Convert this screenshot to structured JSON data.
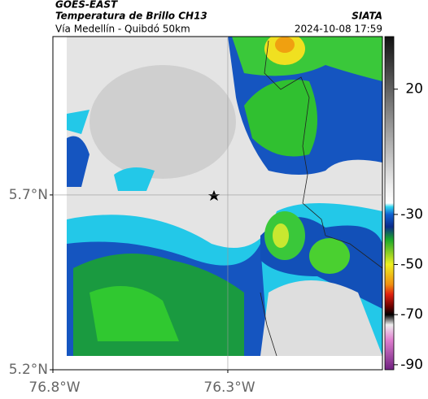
{
  "header": {
    "source": "GOES-EAST",
    "product": "Temperatura de Brillo CH13",
    "region": "Vía Medellín - Quibdó 50km",
    "agency": "SIATA",
    "datetime": "2024-10-08 17:59"
  },
  "map": {
    "xlim": [
      -76.8,
      -75.858
    ],
    "ylim": [
      5.2,
      6.153
    ],
    "xticks": [
      {
        "value": -76.8,
        "label": "76.8°W"
      },
      {
        "value": -76.3,
        "label": "76.3°W"
      }
    ],
    "yticks": [
      {
        "value": 5.7,
        "label": "5.7°N"
      },
      {
        "value": 5.2,
        "label": "5.2°N"
      }
    ],
    "grid": true
  },
  "colorbar": {
    "lim": [
      -92,
      41
    ],
    "ticks": [
      20,
      -30,
      -50,
      -70,
      -90
    ]
  }
}
